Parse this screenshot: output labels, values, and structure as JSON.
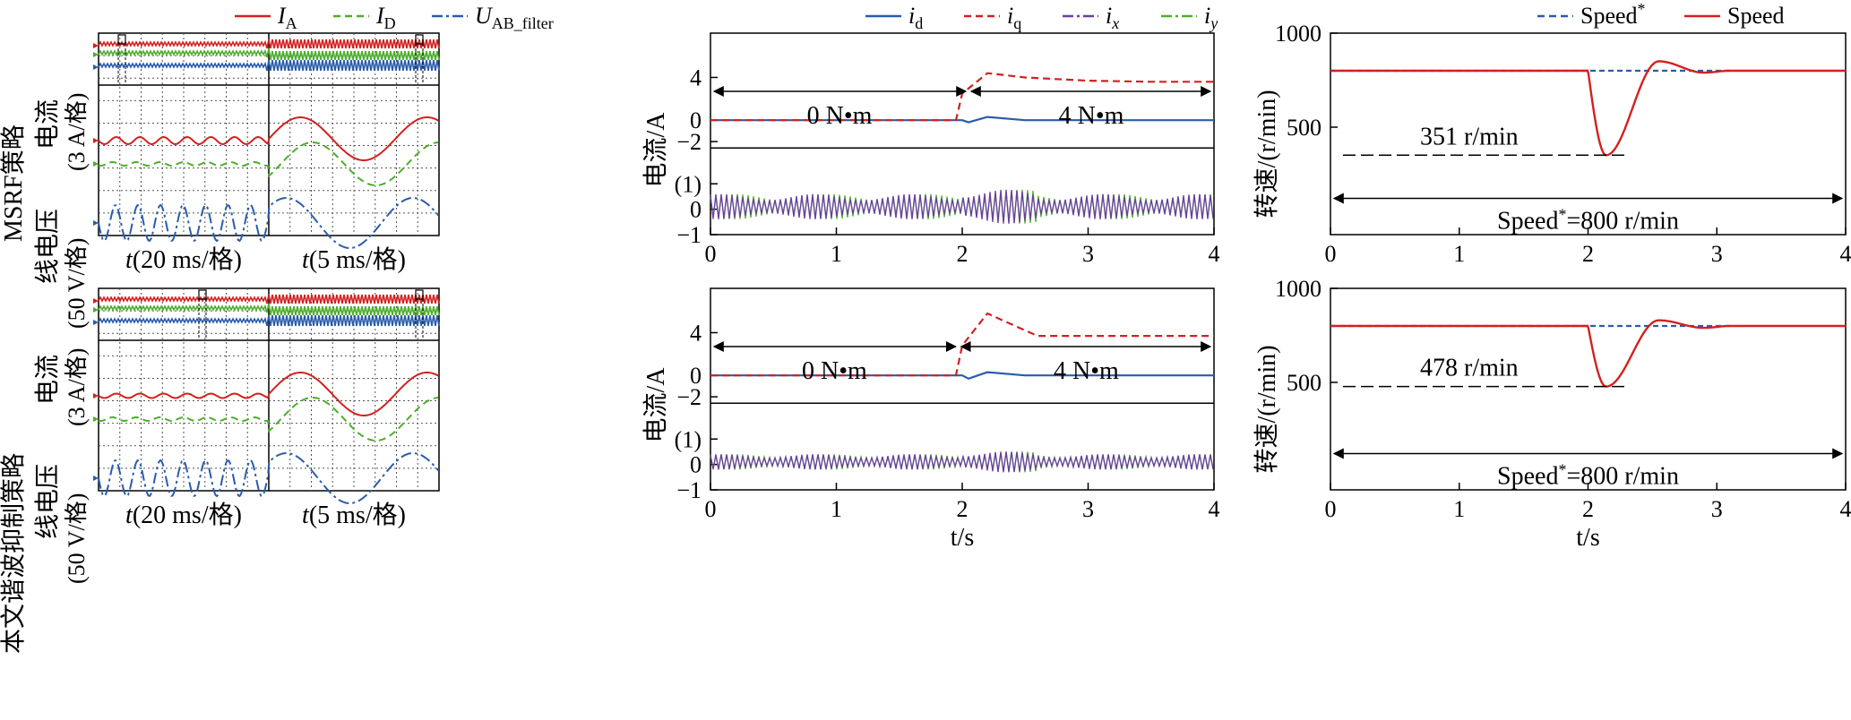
{
  "row_labels": {
    "top_line1": "MSRF",
    "top_line2": "策略",
    "bottom": "本文谐波抑制策略"
  },
  "scope": {
    "legend": [
      {
        "var": "I",
        "sub": "A",
        "color": "#d42020",
        "dash": "solid"
      },
      {
        "var": "I",
        "sub": "D",
        "color": "#4caf2a",
        "dash": "dash"
      },
      {
        "var": "U",
        "sub": "AB_filter",
        "color": "#2a5caa",
        "dash": "dashdot"
      }
    ],
    "ylabel_current": "电流",
    "ylabel_current_scale": "(3 A/格)",
    "ylabel_voltage": "线电压",
    "ylabel_voltage_scale": "(50 V/格)",
    "xlabel_left_var": "t",
    "xlabel_left_scale": "(20 ms/格)",
    "xlabel_right_var": "t",
    "xlabel_right_scale": "(5 ms/格)"
  },
  "chart_data": [
    {
      "id": "dq-current-msrf",
      "type": "line",
      "ylabel": "电流/A",
      "xlabel": "",
      "xlim": [
        0,
        4
      ],
      "x_ticks": [
        "0",
        "1",
        "2",
        "3",
        "4"
      ],
      "upper_ticks": [
        "4",
        "0",
        "−2"
      ],
      "lower_ticks": [
        "(1)",
        "0",
        "−1"
      ],
      "annotations": [
        "0 N•m",
        "4 N•m"
      ],
      "legend": [
        {
          "var": "i",
          "sub": "d",
          "color": "#2a5caa",
          "dash": "solid"
        },
        {
          "var": "i",
          "sub": "q",
          "color": "#d42020",
          "dash": "dash"
        },
        {
          "var": "i",
          "sub": "x",
          "color": "#6a3fa0",
          "dash": "dashdot",
          "italic_sub": true
        },
        {
          "var": "i",
          "sub": "y",
          "color": "#4caf2a",
          "dash": "dashdot",
          "italic_sub": true
        }
      ],
      "series": [
        {
          "name": "id",
          "x": [
            0,
            2.0,
            2.05,
            2.2,
            2.5,
            4
          ],
          "values": [
            0,
            0,
            -0.2,
            0.3,
            0,
            0
          ]
        },
        {
          "name": "iq",
          "x": [
            0,
            1.95,
            2.0,
            2.2,
            2.5,
            3.0,
            3.5,
            4.0
          ],
          "values": [
            0,
            0,
            2.5,
            4.4,
            4.0,
            3.7,
            3.6,
            3.6
          ]
        }
      ]
    },
    {
      "id": "speed-msrf",
      "type": "line",
      "ylabel": "转速/(r/min)",
      "xlabel": "",
      "xlim": [
        0,
        4
      ],
      "ylim": [
        250,
        1000
      ],
      "x_ticks": [
        "0",
        "1",
        "2",
        "3",
        "4"
      ],
      "y_ticks": [
        "1000",
        "500"
      ],
      "legend": [
        {
          "name": "Speed",
          "sup": "*",
          "color": "#2a5caa",
          "dash": "dash"
        },
        {
          "name": "Speed",
          "sup": "",
          "color": "#d42020",
          "dash": "solid"
        }
      ],
      "dip_annotation": "351 r/min",
      "ref_annotation_pre": "Speed",
      "ref_annotation_sup": "*",
      "ref_annotation_post": "=800 r/min",
      "series": [
        {
          "name": "Speed*",
          "x": [
            0,
            3.1
          ],
          "values": [
            800,
            800
          ]
        },
        {
          "name": "Speed",
          "x": [
            0,
            2.0,
            2.14,
            2.35,
            2.55,
            2.9,
            3.1,
            4.0
          ],
          "values": [
            800,
            800,
            351,
            700,
            850,
            790,
            800,
            800
          ]
        }
      ]
    },
    {
      "id": "dq-current-proposed",
      "type": "line",
      "ylabel": "电流/A",
      "xlabel": "t/s",
      "xlim": [
        0,
        4
      ],
      "x_ticks": [
        "0",
        "1",
        "2",
        "3",
        "4"
      ],
      "upper_ticks": [
        "4",
        "0",
        "−2"
      ],
      "lower_ticks": [
        "(1)",
        "0",
        "−1"
      ],
      "annotations": [
        "0 N•m",
        "4 N•m"
      ],
      "series": [
        {
          "name": "id",
          "x": [
            0,
            2.0,
            2.05,
            2.2,
            2.5,
            4
          ],
          "values": [
            0,
            0,
            -0.3,
            0.3,
            0,
            0
          ]
        },
        {
          "name": "iq",
          "x": [
            0,
            1.95,
            2.0,
            2.2,
            2.5,
            2.6,
            3.0,
            4.0
          ],
          "values": [
            0,
            0,
            2.8,
            5.8,
            4.2,
            3.7,
            3.7,
            3.7
          ]
        }
      ]
    },
    {
      "id": "speed-proposed",
      "type": "line",
      "ylabel": "转速/(r/min)",
      "xlabel": "t/s",
      "xlim": [
        0,
        4
      ],
      "ylim": [
        250,
        1000
      ],
      "x_ticks": [
        "0",
        "1",
        "2",
        "3",
        "4"
      ],
      "y_ticks": [
        "1000",
        "500"
      ],
      "dip_annotation": "478 r/min",
      "ref_annotation_pre": "Speed",
      "ref_annotation_sup": "*",
      "ref_annotation_post": "=800 r/min",
      "series": [
        {
          "name": "Speed*",
          "x": [
            0,
            3.1
          ],
          "values": [
            800,
            800
          ]
        },
        {
          "name": "Speed",
          "x": [
            0,
            2.0,
            2.14,
            2.35,
            2.55,
            2.9,
            3.1,
            4.0
          ],
          "values": [
            800,
            800,
            478,
            720,
            830,
            790,
            800,
            800
          ]
        }
      ]
    }
  ]
}
